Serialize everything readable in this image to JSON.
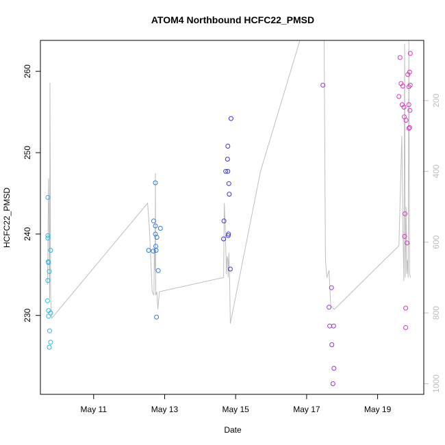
{
  "chart_data": {
    "type": "scatter",
    "title": "ATOM4 Northbound HCFC22_PMSD",
    "xlabel": "Date",
    "ylabel": "HCFC22_PMSD",
    "x_ticks": [
      {
        "value": 11.0,
        "label": "May 11"
      },
      {
        "value": 13.0,
        "label": "May 13"
      },
      {
        "value": 15.0,
        "label": "May 15"
      },
      {
        "value": 17.0,
        "label": "May 17"
      },
      {
        "value": 19.0,
        "label": "May 19"
      }
    ],
    "y_ticks": [
      230,
      240,
      250,
      260
    ],
    "y_right_ticks": [
      200,
      400,
      600,
      800,
      1000
    ],
    "xlim": [
      9.5,
      20.3
    ],
    "ylim": [
      220.3,
      263.8
    ],
    "y_right_lim": [
      1030,
      30
    ],
    "colors": {
      "line": "#bebebe",
      "points": [
        "#29b6e8",
        "#2a7bdc",
        "#3a2fe0",
        "#9a2fd6",
        "#e02fc6"
      ]
    },
    "series": [
      {
        "values": [
          {
            "x": 9.71,
            "y": 244.5
          },
          {
            "x": 9.71,
            "y": 239.8
          },
          {
            "x": 9.71,
            "y": 239.5
          },
          {
            "x": 9.72,
            "y": 236.6
          },
          {
            "x": 9.73,
            "y": 236.5
          },
          {
            "x": 9.71,
            "y": 234.3
          },
          {
            "x": 9.75,
            "y": 235.4
          },
          {
            "x": 9.79,
            "y": 238.0
          },
          {
            "x": 9.7,
            "y": 231.8
          },
          {
            "x": 9.73,
            "y": 230.6
          },
          {
            "x": 9.73,
            "y": 229.9
          },
          {
            "x": 9.79,
            "y": 230.3
          },
          {
            "x": 9.76,
            "y": 228.1
          },
          {
            "x": 9.79,
            "y": 226.7
          },
          {
            "x": 9.75,
            "y": 226.1
          }
        ]
      },
      {
        "values": [
          {
            "x": 12.74,
            "y": 246.3
          },
          {
            "x": 12.69,
            "y": 241.6
          },
          {
            "x": 12.74,
            "y": 241.0
          },
          {
            "x": 12.88,
            "y": 240.7
          },
          {
            "x": 12.74,
            "y": 240.0
          },
          {
            "x": 12.78,
            "y": 239.6
          },
          {
            "x": 12.75,
            "y": 238.5
          },
          {
            "x": 12.55,
            "y": 238.0
          },
          {
            "x": 12.68,
            "y": 237.9
          },
          {
            "x": 12.76,
            "y": 238.0
          },
          {
            "x": 12.82,
            "y": 235.5
          },
          {
            "x": 12.77,
            "y": 229.8
          }
        ]
      },
      {
        "values": [
          {
            "x": 14.87,
            "y": 254.2
          },
          {
            "x": 14.78,
            "y": 250.8
          },
          {
            "x": 14.77,
            "y": 249.2
          },
          {
            "x": 14.72,
            "y": 247.7
          },
          {
            "x": 14.78,
            "y": 247.7
          },
          {
            "x": 14.81,
            "y": 246.2
          },
          {
            "x": 14.82,
            "y": 244.9
          },
          {
            "x": 14.67,
            "y": 241.6
          },
          {
            "x": 14.8,
            "y": 240.0
          },
          {
            "x": 14.79,
            "y": 239.8
          },
          {
            "x": 14.66,
            "y": 239.4
          },
          {
            "x": 14.85,
            "y": 235.7
          }
        ]
      },
      {
        "values": [
          {
            "x": 17.46,
            "y": 258.3
          },
          {
            "x": 17.7,
            "y": 233.4
          },
          {
            "x": 17.63,
            "y": 231.0
          },
          {
            "x": 17.65,
            "y": 228.7
          },
          {
            "x": 17.76,
            "y": 228.7
          },
          {
            "x": 17.71,
            "y": 226.4
          },
          {
            "x": 17.77,
            "y": 223.5
          },
          {
            "x": 17.74,
            "y": 221.6
          }
        ]
      },
      {
        "values": [
          {
            "x": 19.63,
            "y": 261.7
          },
          {
            "x": 19.92,
            "y": 262.2
          },
          {
            "x": 19.85,
            "y": 259.6
          },
          {
            "x": 19.9,
            "y": 259.9
          },
          {
            "x": 19.66,
            "y": 258.5
          },
          {
            "x": 19.71,
            "y": 258.2
          },
          {
            "x": 19.92,
            "y": 258.3
          },
          {
            "x": 19.88,
            "y": 258.1
          },
          {
            "x": 19.6,
            "y": 256.9
          },
          {
            "x": 19.69,
            "y": 255.9
          },
          {
            "x": 19.74,
            "y": 255.6
          },
          {
            "x": 19.88,
            "y": 255.9
          },
          {
            "x": 19.91,
            "y": 255.2
          },
          {
            "x": 19.75,
            "y": 254.4
          },
          {
            "x": 19.8,
            "y": 254.0
          },
          {
            "x": 19.9,
            "y": 253.1
          },
          {
            "x": 19.88,
            "y": 253.0
          },
          {
            "x": 19.77,
            "y": 242.5
          },
          {
            "x": 19.76,
            "y": 239.7
          },
          {
            "x": 19.83,
            "y": 238.9
          },
          {
            "x": 19.79,
            "y": 230.9
          },
          {
            "x": 19.79,
            "y": 228.5
          }
        ]
      }
    ],
    "pressure_line": [
      {
        "x": 9.7,
        "y": 720
      },
      {
        "x": 9.73,
        "y": 420
      },
      {
        "x": 9.74,
        "y": 500
      },
      {
        "x": 9.75,
        "y": 700
      },
      {
        "x": 9.76,
        "y": 760
      },
      {
        "x": 9.77,
        "y": 150
      },
      {
        "x": 9.79,
        "y": 760
      },
      {
        "x": 9.82,
        "y": 815
      },
      {
        "x": 12.52,
        "y": 490
      },
      {
        "x": 12.57,
        "y": 560
      },
      {
        "x": 12.65,
        "y": 740
      },
      {
        "x": 12.7,
        "y": 750
      },
      {
        "x": 12.71,
        "y": 620
      },
      {
        "x": 12.73,
        "y": 680
      },
      {
        "x": 12.74,
        "y": 405
      },
      {
        "x": 12.75,
        "y": 750
      },
      {
        "x": 12.78,
        "y": 740
      },
      {
        "x": 12.81,
        "y": 790
      },
      {
        "x": 12.85,
        "y": 740
      },
      {
        "x": 14.66,
        "y": 700
      },
      {
        "x": 14.68,
        "y": 490
      },
      {
        "x": 14.71,
        "y": 560
      },
      {
        "x": 14.74,
        "y": 690
      },
      {
        "x": 14.76,
        "y": 640
      },
      {
        "x": 14.78,
        "y": 650
      },
      {
        "x": 14.79,
        "y": 700
      },
      {
        "x": 14.81,
        "y": 630
      },
      {
        "x": 14.83,
        "y": 700
      },
      {
        "x": 14.85,
        "y": 830
      },
      {
        "x": 15.7,
        "y": 400
      },
      {
        "x": 16.9,
        "y": 0
      },
      {
        "x": 17.49,
        "y": -20
      },
      {
        "x": 17.53,
        "y": 650
      },
      {
        "x": 17.57,
        "y": 700
      },
      {
        "x": 17.63,
        "y": 680
      },
      {
        "x": 17.68,
        "y": 780
      },
      {
        "x": 17.78,
        "y": 790
      },
      {
        "x": 19.6,
        "y": 610
      },
      {
        "x": 19.68,
        "y": 300
      },
      {
        "x": 19.71,
        "y": 550
      },
      {
        "x": 19.74,
        "y": 710
      },
      {
        "x": 19.76,
        "y": 40
      },
      {
        "x": 19.78,
        "y": 700
      },
      {
        "x": 19.8,
        "y": 500
      },
      {
        "x": 19.82,
        "y": 690
      },
      {
        "x": 19.84,
        "y": 650
      },
      {
        "x": 19.86,
        "y": 700
      },
      {
        "x": 19.88,
        "y": 30
      },
      {
        "x": 19.9,
        "y": 690
      },
      {
        "x": 19.93,
        "y": 700
      }
    ]
  }
}
